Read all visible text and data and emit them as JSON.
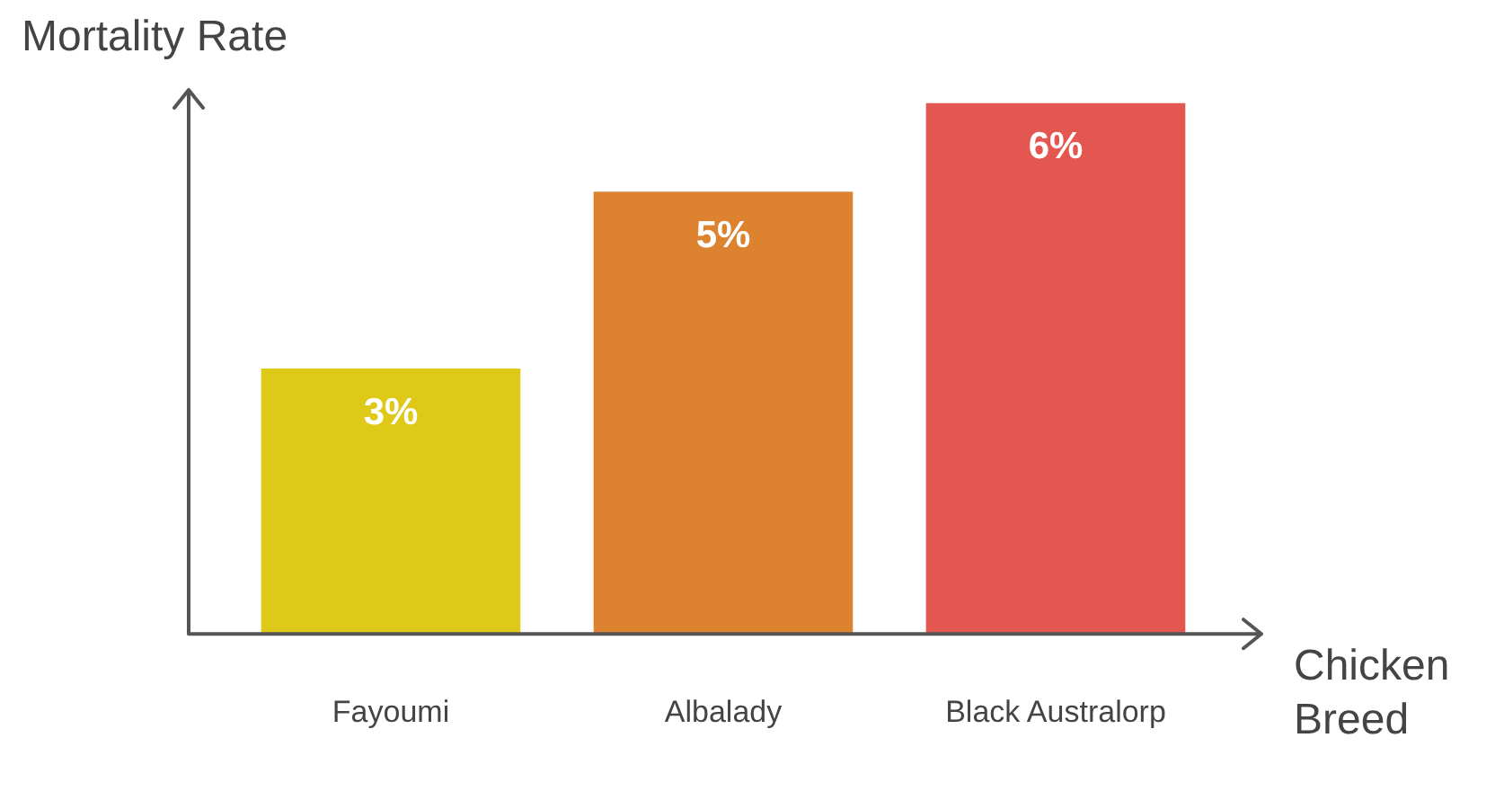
{
  "chart_data": {
    "type": "bar",
    "xlabel": "Chicken Breed",
    "ylabel": "Mortality Rate",
    "categories": [
      "Fayoumi",
      "Albalady",
      "Black Australorp"
    ],
    "values": [
      3,
      5,
      6
    ],
    "colors": [
      "#dfc918",
      "#dd8330",
      "#e35750"
    ],
    "value_labels": [
      "3%",
      "5%",
      "6%"
    ],
    "grid": false,
    "legend": false
  }
}
